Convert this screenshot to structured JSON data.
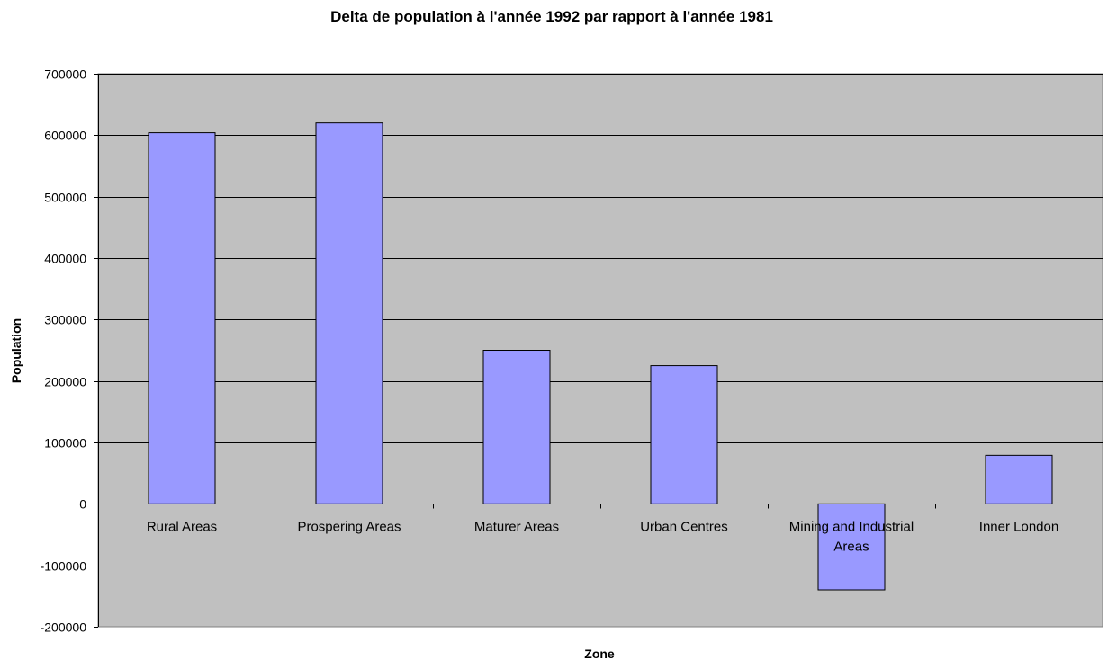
{
  "chart_data": {
    "type": "bar",
    "title": "Delta de population à l'année 1992 par rapport à l'année 1981",
    "xlabel": "Zone",
    "ylabel": "Population",
    "categories": [
      [
        "Rural Areas"
      ],
      [
        "Prospering Areas"
      ],
      [
        "Maturer Areas"
      ],
      [
        "Urban Centres"
      ],
      [
        "Mining and Industrial",
        "Areas"
      ],
      [
        "Inner London"
      ]
    ],
    "values": [
      604000,
      620000,
      250000,
      225000,
      -140000,
      79000
    ],
    "ylim": [
      -200000,
      700000
    ],
    "yticks": [
      -200000,
      -100000,
      0,
      100000,
      200000,
      300000,
      400000,
      500000,
      600000,
      700000
    ],
    "ytick_labels": [
      "-200000",
      "-100000",
      "0",
      "100000",
      "200000",
      "300000",
      "400000",
      "500000",
      "600000",
      "700000"
    ],
    "grid": true,
    "legend": "none",
    "colors": {
      "bar_fill": "#9999ff",
      "bar_stroke": "#000000",
      "plot_background": "#c0c0c0",
      "gridline": "#000000"
    }
  }
}
